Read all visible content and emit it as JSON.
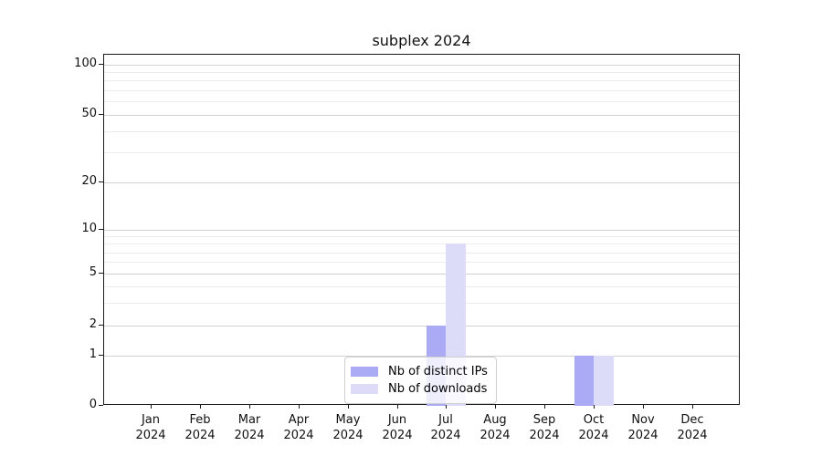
{
  "chart_data": {
    "type": "bar",
    "title": "subplex 2024",
    "categories": [
      "Jan",
      "Feb",
      "Mar",
      "Apr",
      "May",
      "Jun",
      "Jul",
      "Aug",
      "Sep",
      "Oct",
      "Nov",
      "Dec"
    ],
    "year_label": "2024",
    "series": [
      {
        "name": "Nb of distinct IPs",
        "color": "#ababf5",
        "values": [
          0,
          0,
          0,
          0,
          0,
          0,
          2,
          0,
          0,
          1,
          0,
          0
        ]
      },
      {
        "name": "Nb of downloads",
        "color": "#dcdcf8",
        "values": [
          0,
          0,
          0,
          0,
          0,
          0,
          8,
          0,
          0,
          1,
          0,
          0
        ]
      }
    ],
    "xlabel": "",
    "ylabel": "",
    "ylim": [
      0,
      115
    ],
    "y_axis": {
      "scale": "log-like (symlog, linear below 1)",
      "major_ticks": [
        0,
        1,
        2,
        5,
        10,
        20,
        50,
        100
      ],
      "minor_ticks": [
        3,
        4,
        6,
        7,
        8,
        9,
        30,
        40,
        60,
        70,
        80,
        90
      ]
    },
    "grid": "horizontal, major and minor, light gray, behind bars",
    "legend_position": "bottom-center inside plot, semi-transparent"
  },
  "colors": {
    "axis": "#1a1a1a",
    "grid_major": "#d2d2d2",
    "grid_minor": "#ececec",
    "background": "#ffffff"
  }
}
